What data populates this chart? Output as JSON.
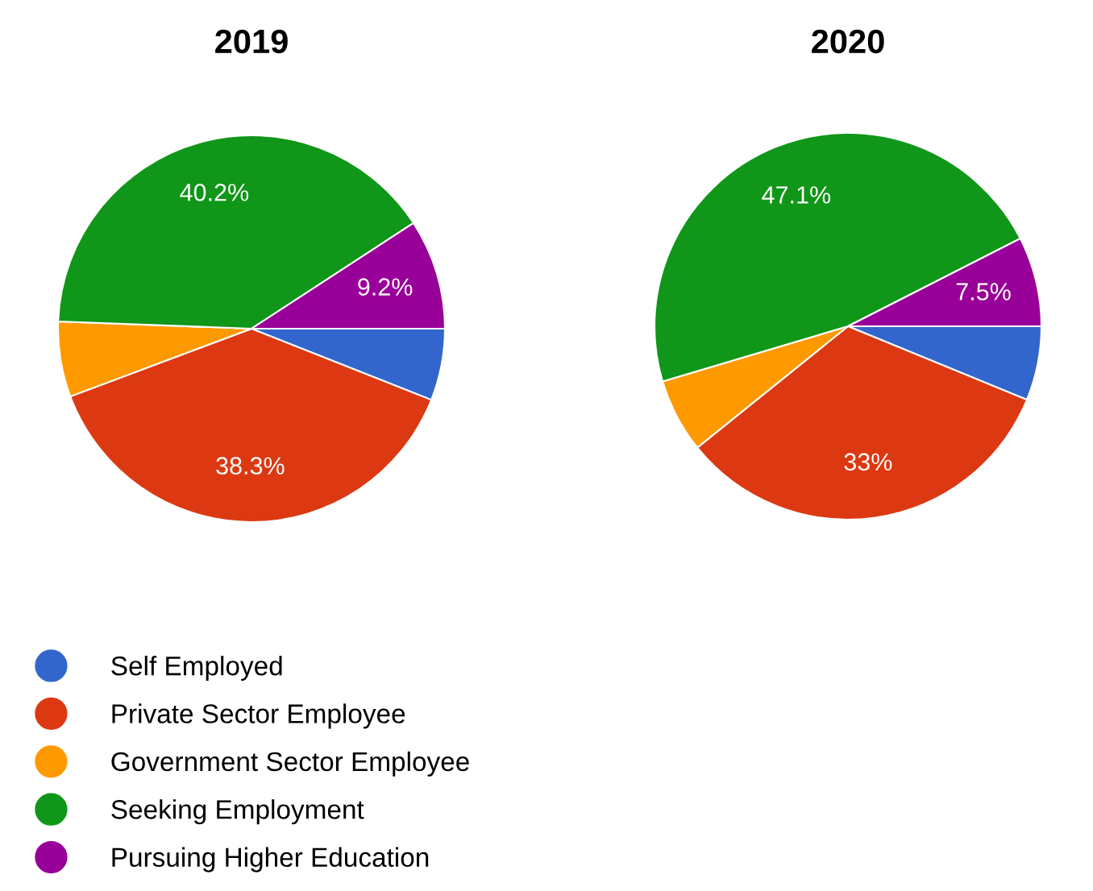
{
  "chart_data": [
    {
      "type": "pie",
      "title": "2019",
      "categories": [
        "Self Employed",
        "Private Sector Employee",
        "Government Sector Employee",
        "Seeking Employment",
        "Pursuing Higher Education"
      ],
      "values": [
        6.0,
        38.3,
        6.3,
        40.2,
        9.2
      ],
      "value_labels": [
        null,
        "38.3%",
        null,
        "40.2%",
        "9.2%"
      ],
      "colors": [
        "#3366cc",
        "#dc3912",
        "#ff9900",
        "#109618",
        "#990099"
      ],
      "legend": "bottom"
    },
    {
      "type": "pie",
      "title": "2020",
      "categories": [
        null,
        null,
        null,
        null,
        null
      ],
      "values": [
        6.2,
        33,
        6.2,
        47.1,
        7.5
      ],
      "value_labels": [
        null,
        "33%",
        null,
        "47.1%",
        "7.5%"
      ],
      "colors": [
        "#3366cc",
        "#dc3912",
        "#ff9900",
        "#109618",
        "#990099"
      ],
      "legend": false
    }
  ]
}
